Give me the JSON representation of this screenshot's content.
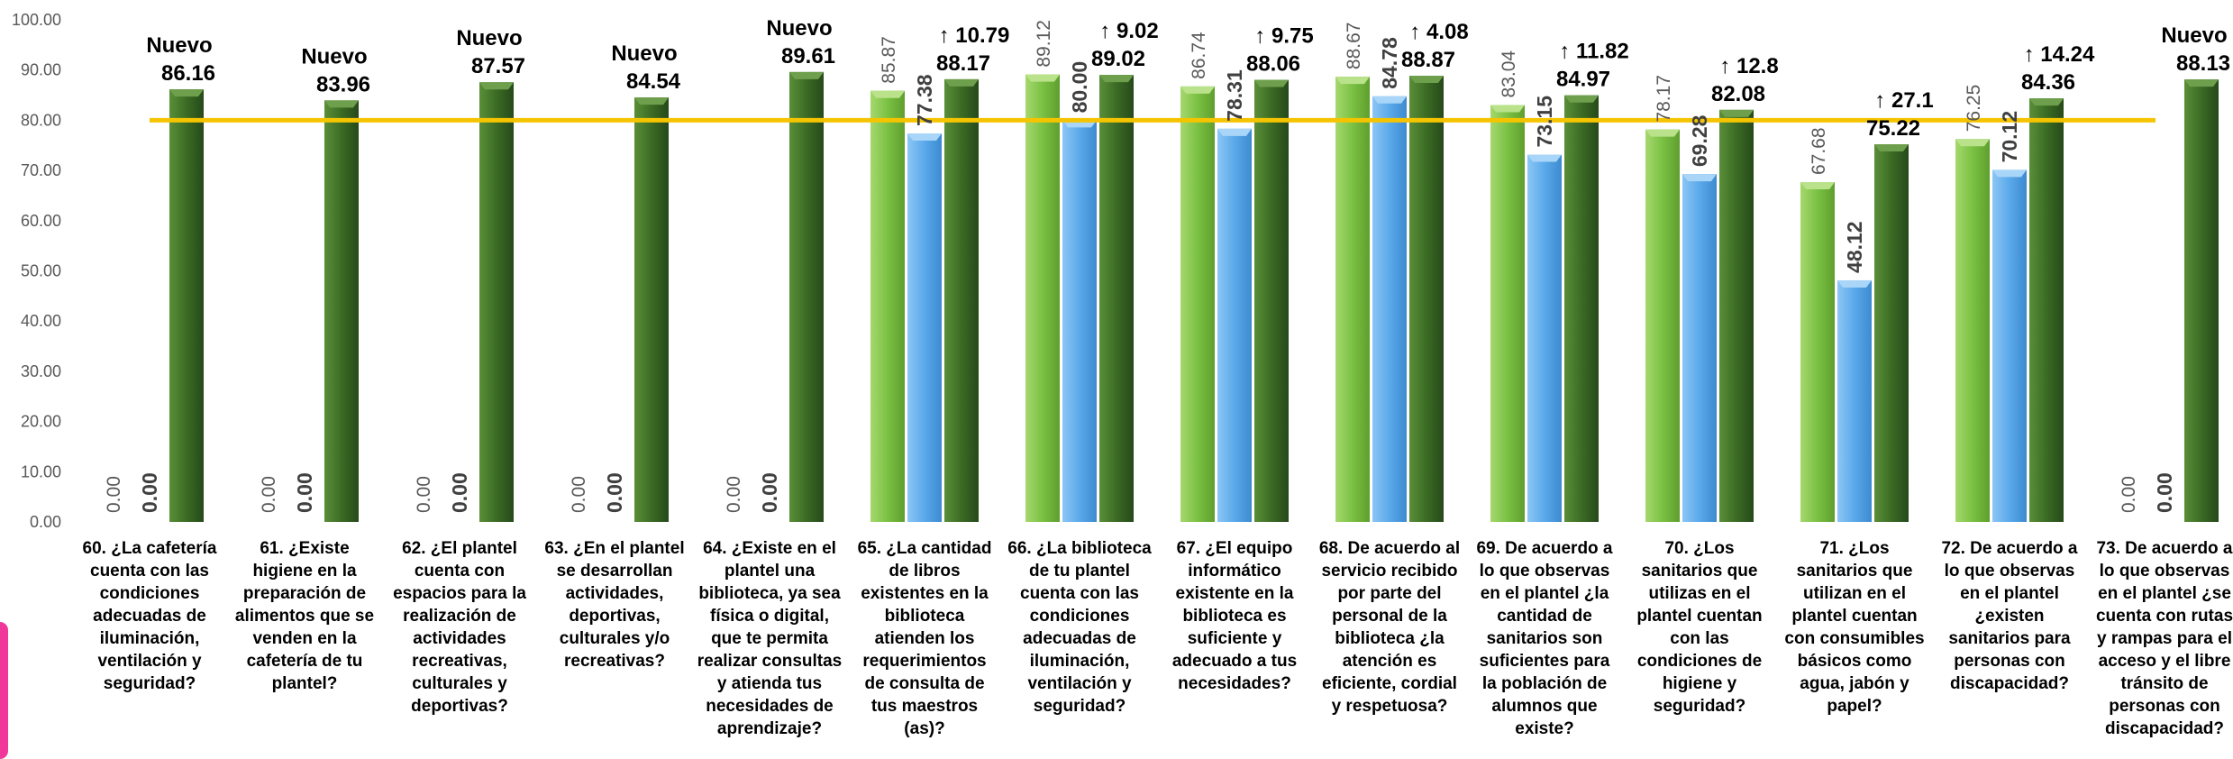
{
  "chart_data": {
    "type": "bar",
    "title": "",
    "xlabel": "",
    "ylabel": "",
    "ylim": [
      0,
      100
    ],
    "yticks": [
      "0.00",
      "10.00",
      "20.00",
      "30.00",
      "40.00",
      "50.00",
      "60.00",
      "70.00",
      "80.00",
      "90.00",
      "100.00"
    ],
    "grid": false,
    "legend": "none",
    "reference_line": {
      "value": 80,
      "color": "#f5c400"
    },
    "colors": {
      "light": "#7ac143",
      "blue": "#5aa9ea",
      "dark": "#3b6b24"
    },
    "categories": [
      [
        "60. ¿La cafetería",
        "cuenta con las",
        "condiciones",
        "adecuadas de",
        "iluminación,",
        "ventilación y",
        "seguridad?"
      ],
      [
        "61. ¿Existe",
        "higiene en la",
        "preparación de",
        "alimentos que se",
        "venden en la",
        "cafetería de tu",
        "plantel?"
      ],
      [
        "62. ¿El plantel",
        "cuenta con",
        "espacios  para la",
        "realización de",
        "actividades",
        "recreativas,",
        "culturales y",
        "deportivas?"
      ],
      [
        "63. ¿En el plantel",
        "se desarrollan",
        "actividades,",
        "deportivas,",
        "culturales y/o",
        "recreativas?"
      ],
      [
        "64. ¿Existe en el",
        "plantel una",
        "biblioteca, ya sea",
        "física o digital,",
        "que te permita",
        "realizar consultas",
        "y  atienda tus",
        "necesidades de",
        "aprendizaje?"
      ],
      [
        "65. ¿La cantidad",
        "de libros",
        "existentes en la",
        "biblioteca",
        "atienden los",
        "requerimientos",
        "de consulta de",
        "tus maestros",
        "(as)?"
      ],
      [
        "66. ¿La biblioteca",
        "de tu plantel",
        "cuenta con las",
        "condiciones",
        "adecuadas de",
        "iluminación,",
        "ventilación y",
        "seguridad?"
      ],
      [
        "67. ¿El equipo",
        "informático",
        "existente en la",
        "biblioteca es",
        "suficiente y",
        "adecuado a tus",
        "necesidades?"
      ],
      [
        "68. De acuerdo al",
        "servicio recibido",
        "por parte del",
        "personal de la",
        "biblioteca ¿la",
        "atención es",
        "eficiente, cordial",
        "y respetuosa?"
      ],
      [
        "69. De acuerdo a",
        "lo que observas",
        "en el plantel ¿la",
        "cantidad de",
        "sanitarios son",
        "suficientes para",
        "la población de",
        "alumnos que",
        "existe?"
      ],
      [
        "70. ¿Los",
        "sanitarios que",
        "utilizas en el",
        "plantel cuentan",
        "con las",
        "condiciones de",
        "higiene y",
        "seguridad?"
      ],
      [
        "71. ¿Los",
        "sanitarios que",
        "utilizan en el",
        "plantel cuentan",
        "con consumibles",
        "básicos como",
        "agua, jabón y",
        "papel?"
      ],
      [
        "72. De acuerdo a",
        "lo que observas",
        "en el plantel",
        "¿existen",
        "sanitarios para",
        "personas con",
        "discapacidad?"
      ],
      [
        "73. De acuerdo a",
        "lo que observas",
        "en el plantel ¿se",
        "cuenta con rutas",
        "y rampas para el",
        "acceso y el libre",
        "tránsito  de",
        "personas con",
        "discapacidad?"
      ]
    ],
    "series": [
      {
        "key": "light",
        "values": [
          0,
          0,
          0,
          0,
          0,
          85.87,
          89.12,
          86.74,
          88.67,
          83.04,
          78.17,
          67.68,
          76.25,
          0
        ],
        "labels": [
          "0.00",
          "0.00",
          "0.00",
          "0.00",
          "0.00",
          "85.87",
          "89.12",
          "86.74",
          "88.67",
          "83.04",
          "78.17",
          "67.68",
          "76.25",
          "0.00"
        ]
      },
      {
        "key": "blue",
        "values": [
          0,
          0,
          0,
          0,
          0,
          77.38,
          80.0,
          78.31,
          84.78,
          73.15,
          69.28,
          48.12,
          70.12,
          0
        ],
        "labels": [
          "0.00",
          "0.00",
          "0.00",
          "0.00",
          "0.00",
          "77.38",
          "80.00",
          "78.31",
          "84.78",
          "73.15",
          "69.28",
          "48.12",
          "70.12",
          "0.00"
        ]
      },
      {
        "key": "dark",
        "values": [
          86.16,
          83.96,
          87.57,
          84.54,
          89.61,
          88.17,
          89.02,
          88.06,
          88.87,
          84.97,
          82.08,
          75.22,
          84.36,
          88.13
        ],
        "labels": [
          "86.16",
          "83.96",
          "87.57",
          "84.54",
          "89.61",
          "88.17",
          "89.02",
          "88.06",
          "88.87",
          "84.97",
          "82.08",
          "75.22",
          "84.36",
          "88.13"
        ],
        "annotations": [
          "Nuevo",
          "Nuevo",
          "Nuevo",
          "Nuevo",
          "Nuevo",
          "↑ 10.79",
          "↑ 9.02",
          "↑ 9.75",
          "↑ 4.08",
          "↑ 11.82",
          "↑ 12.8",
          "↑ 27.1",
          "↑ 14.24",
          "Nuevo"
        ]
      }
    ]
  }
}
